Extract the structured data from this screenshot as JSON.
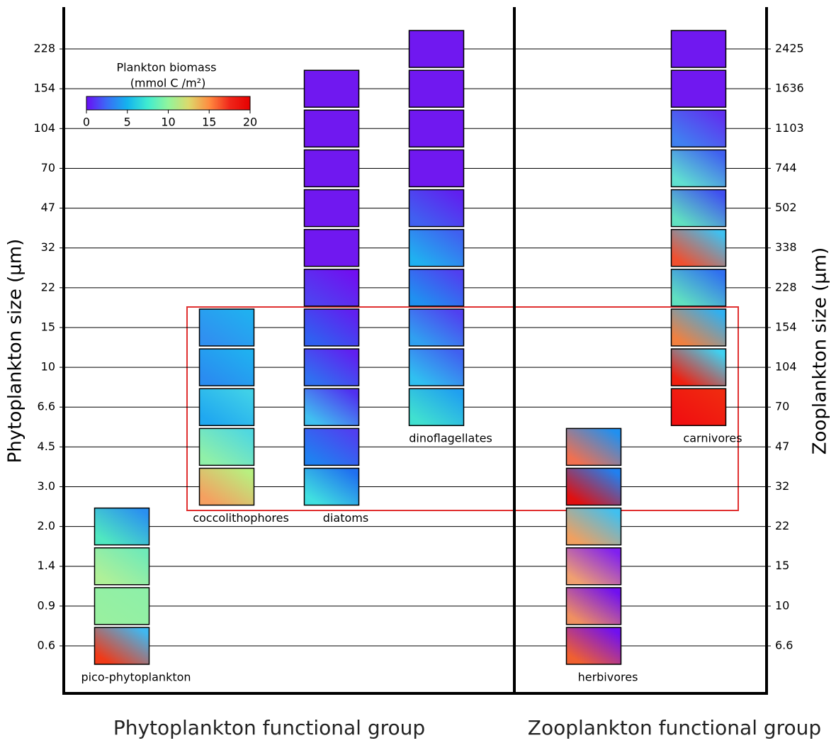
{
  "chart_data": {
    "type": "heatmap-grid",
    "y_label": "Phytoplankton size (µm)",
    "y2_label": "Zooplankton size (µm)",
    "y_categories": [
      "0.6",
      "0.9",
      "1.4",
      "2.0",
      "3.0",
      "4.5",
      "6.6",
      "10",
      "15",
      "22",
      "32",
      "47",
      "70",
      "104",
      "154",
      "228"
    ],
    "y2_categories": [
      "6.6",
      "10",
      "15",
      "22",
      "32",
      "47",
      "70",
      "104",
      "154",
      "228",
      "338",
      "502",
      "744",
      "1103",
      "1636",
      "2425"
    ],
    "x_groups": [
      "Phytoplankton functional group",
      "Zooplankton functional group"
    ],
    "colorbar": {
      "title": [
        "Plankton biomass",
        "(mmol C /m²)"
      ],
      "lim": [
        0,
        20
      ],
      "ticks": [
        0,
        5,
        10,
        15,
        20
      ],
      "colors": [
        "#6a0df5",
        "#3a6cf6",
        "#14b4ee",
        "#40ecd0",
        "#92f59c",
        "#dcd96c",
        "#ff8c40",
        "#f0261a",
        "#e60000"
      ]
    },
    "groups": [
      {
        "name": "pico-phytoplankton",
        "axis": "y",
        "sizes": [
          "0.6",
          "0.9",
          "1.4",
          "2.0"
        ],
        "colors": [
          [
            "#f03a18",
            "#40b8f0"
          ],
          [
            "#98f0a0",
            "#8ef0a8"
          ],
          [
            "#b0f098",
            "#70eab8"
          ],
          [
            "#50e8c0",
            "#2a90f0"
          ]
        ]
      },
      {
        "name": "coccolithophores",
        "axis": "y",
        "sizes": [
          "3.0",
          "4.5",
          "6.6",
          "10",
          "15"
        ],
        "colors": [
          [
            "#f5a060",
            "#b8f080"
          ],
          [
            "#90f0a8",
            "#50d8e0"
          ],
          [
            "#20a8f0",
            "#40d0e8"
          ],
          [
            "#2a8cf0",
            "#20b0f0"
          ],
          [
            "#3090f0",
            "#20b0f0"
          ]
        ]
      },
      {
        "name": "diatoms",
        "axis": "y",
        "sizes": [
          "3.0",
          "4.5",
          "6.6",
          "10",
          "15",
          "22",
          "32",
          "47",
          "70",
          "104",
          "154"
        ],
        "colors": [
          [
            "#40e0e0",
            "#2070f0"
          ],
          [
            "#2080f0",
            "#5040f0"
          ],
          [
            "#40c0f0",
            "#5030f0"
          ],
          [
            "#3070f0",
            "#6020f0"
          ],
          [
            "#3060f0",
            "#6020f0"
          ],
          [
            "#5040f0",
            "#7010f0"
          ],
          [
            "#7018f0",
            "#7018f0"
          ],
          [
            "#7018f0",
            "#7018f0"
          ],
          [
            "#7018f0",
            "#7018f0"
          ],
          [
            "#7018f0",
            "#7018f0"
          ],
          [
            "#7018f0",
            "#7018f0"
          ]
        ]
      },
      {
        "name": "dinoflagellates",
        "axis": "y",
        "sizes": [
          "6.6",
          "10",
          "15",
          "22",
          "32",
          "47",
          "70",
          "104",
          "154",
          "228"
        ],
        "colors": [
          [
            "#40e0d0",
            "#20a0f0"
          ],
          [
            "#30c0f0",
            "#4060f0"
          ],
          [
            "#30a0f0",
            "#5040f0"
          ],
          [
            "#2090f0",
            "#5040f0"
          ],
          [
            "#20b0f0",
            "#4060f0"
          ],
          [
            "#4060f0",
            "#6020f0"
          ],
          [
            "#7018f0",
            "#7018f0"
          ],
          [
            "#7018f0",
            "#7018f0"
          ],
          [
            "#7018f0",
            "#7018f0"
          ],
          [
            "#7018f0",
            "#7018f0"
          ]
        ]
      },
      {
        "name": "herbivores",
        "axis": "y2",
        "sizes": [
          "6.6",
          "10",
          "15",
          "22",
          "32",
          "47"
        ],
        "colors": [
          [
            "#f06030",
            "#7010f0"
          ],
          [
            "#f09060",
            "#7010f0"
          ],
          [
            "#f0a070",
            "#8020f0"
          ],
          [
            "#f0a060",
            "#40c0f0"
          ],
          [
            "#e01010",
            "#2080f0"
          ],
          [
            "#f07050",
            "#2090f0"
          ]
        ]
      },
      {
        "name": "carnivores",
        "axis": "y2",
        "sizes": [
          "70",
          "104",
          "154",
          "228",
          "338",
          "502",
          "744",
          "1103",
          "1636",
          "2425"
        ],
        "colors": [
          [
            "#f01010",
            "#f02a10"
          ],
          [
            "#f02010",
            "#40d0f0"
          ],
          [
            "#f08040",
            "#30b0f0"
          ],
          [
            "#60e0c0",
            "#3070f0"
          ],
          [
            "#f05030",
            "#40c0f0"
          ],
          [
            "#60e0c0",
            "#4050f0"
          ],
          [
            "#60e0d0",
            "#4060f0"
          ],
          [
            "#4080f0",
            "#6030f0"
          ],
          [
            "#7018f0",
            "#7018f0"
          ],
          [
            "#7018f0",
            "#7018f0"
          ]
        ]
      }
    ]
  }
}
